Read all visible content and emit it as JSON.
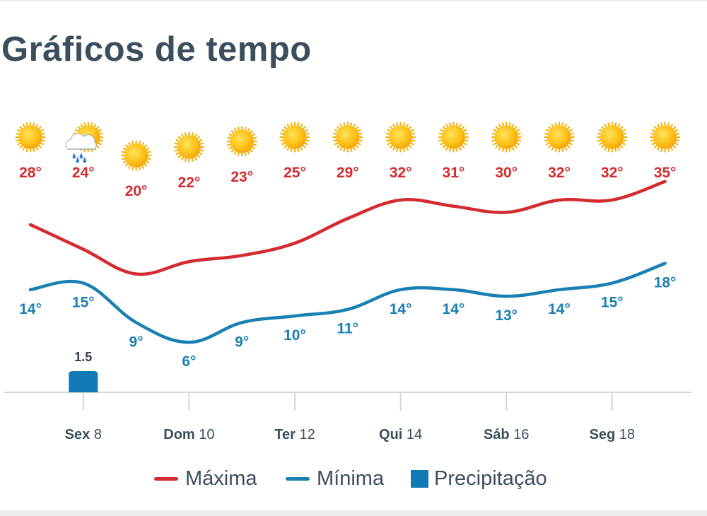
{
  "page": {
    "title": "Gráficos de tempo"
  },
  "colors": {
    "max": "#d32b2f",
    "min": "#1a7fb3",
    "precip": "#0f7ab3",
    "axis": "#d6d6d6",
    "label": "#3c4e5c"
  },
  "chart_data": {
    "type": "line",
    "x": [
      7,
      8,
      9,
      10,
      11,
      12,
      13,
      14,
      15,
      16,
      17,
      18,
      19
    ],
    "icons": [
      "sun-icon",
      "sun-rain-icon",
      "sun-icon",
      "sun-icon",
      "sun-icon",
      "sun-icon",
      "sun-icon",
      "sun-icon",
      "sun-icon",
      "sun-icon",
      "sun-icon",
      "sun-icon",
      "sun-icon"
    ],
    "series": [
      {
        "name": "Máxima",
        "values": [
          28,
          24,
          20,
          22,
          23,
          25,
          29,
          32,
          31,
          30,
          32,
          32,
          35
        ],
        "labels": [
          "28°",
          "24°",
          "20°",
          "22°",
          "23°",
          "25°",
          "29°",
          "32°",
          "31°",
          "30°",
          "32°",
          "32°",
          "35°"
        ]
      },
      {
        "name": "Mínima",
        "values": [
          14,
          15,
          9,
          6,
          9,
          10,
          11,
          14,
          14,
          13,
          14,
          15,
          18
        ],
        "labels": [
          "14°",
          "15°",
          "9°",
          "6°",
          "9°",
          "10°",
          "11°",
          "14°",
          "14°",
          "13°",
          "14°",
          "15°",
          "18°"
        ]
      }
    ],
    "precipitation": {
      "name": "Precipitação",
      "values": [
        0,
        1.5,
        0,
        0,
        0,
        0,
        0,
        0,
        0,
        0,
        0,
        0,
        0
      ],
      "labels": [
        "",
        "1.5",
        "",
        "",
        "",
        "",
        "",
        "",
        "",
        "",
        "",
        "",
        ""
      ]
    },
    "x_ticks": [
      {
        "x": 8,
        "day": "Sex",
        "num": "8"
      },
      {
        "x": 10,
        "day": "Dom",
        "num": "10"
      },
      {
        "x": 12,
        "day": "Ter",
        "num": "12"
      },
      {
        "x": 14,
        "day": "Qui",
        "num": "14"
      },
      {
        "x": 16,
        "day": "Sáb",
        "num": "16"
      },
      {
        "x": 18,
        "day": "Seg",
        "num": "18"
      }
    ],
    "legend": {
      "position": "bottom"
    }
  }
}
